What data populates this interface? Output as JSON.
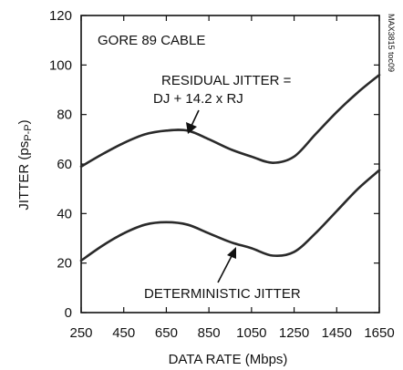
{
  "chart_data": {
    "type": "line",
    "title": "",
    "xlabel": "DATA RATE (Mbps)",
    "ylabel": "JITTER (psP-P)",
    "ylabel_main": "JITTER (ps",
    "ylabel_sub": "P-P",
    "ylabel_close": ")",
    "xlim": [
      250,
      1650
    ],
    "ylim": [
      0,
      120
    ],
    "grid": false,
    "x_ticks": [
      250,
      450,
      650,
      850,
      1050,
      1250,
      1450,
      1650
    ],
    "y_ticks": [
      0,
      20,
      40,
      60,
      80,
      100,
      120
    ],
    "series": [
      {
        "name": "RESIDUAL JITTER",
        "x": [
          250,
          350,
          450,
          550,
          650,
          750,
          850,
          950,
          1050,
          1150,
          1250,
          1350,
          1450,
          1550,
          1650
        ],
        "y": [
          59,
          64,
          68.5,
          72,
          73.5,
          73.5,
          70,
          66,
          63,
          60.5,
          63,
          72,
          81,
          89,
          96
        ]
      },
      {
        "name": "DETERMINISTIC JITTER",
        "x": [
          250,
          350,
          450,
          550,
          650,
          750,
          850,
          950,
          1050,
          1150,
          1250,
          1350,
          1450,
          1550,
          1650
        ],
        "y": [
          21,
          27,
          32,
          35.5,
          36.5,
          35.5,
          32,
          28.5,
          26,
          23,
          24.5,
          32,
          41,
          50,
          57.5
        ]
      }
    ],
    "annotations": {
      "cable": "GORE 89 CABLE",
      "residual_line1": "RESIDUAL JITTER =",
      "residual_line2": "DJ + 14.2 x RJ",
      "deterministic": "DETERMINISTIC JITTER",
      "figure_id": "MAX3815 toc09"
    },
    "colors": {
      "line": "#2a2a2a",
      "axis": "#111111",
      "background": "#ffffff"
    }
  }
}
